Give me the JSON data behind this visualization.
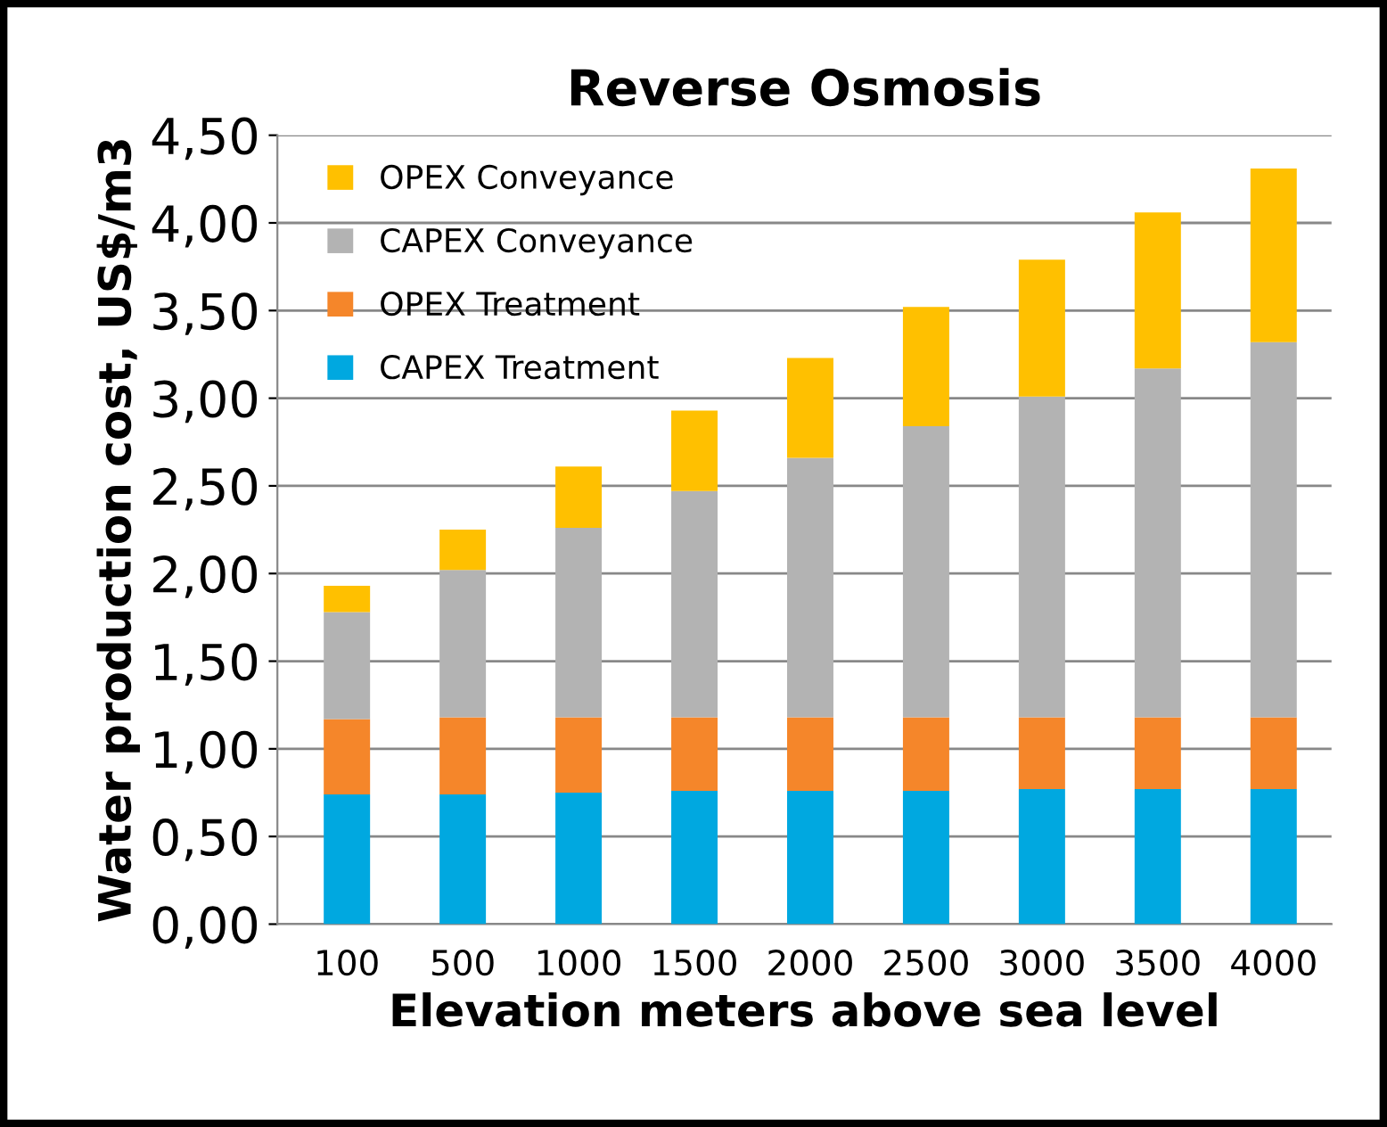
{
  "chart_data": {
    "type": "bar",
    "stacked": true,
    "title": "Reverse Osmosis",
    "xlabel": "Elevation meters above sea level",
    "ylabel": "Water production cost, US$/m3",
    "categories": [
      "100",
      "500",
      "1000",
      "1500",
      "2000",
      "2500",
      "3000",
      "3500",
      "4000"
    ],
    "series": [
      {
        "name": "CAPEX Treatment",
        "color": "#00a8e0",
        "values": [
          0.74,
          0.74,
          0.75,
          0.76,
          0.76,
          0.76,
          0.77,
          0.77,
          0.77
        ]
      },
      {
        "name": "OPEX Treatment",
        "color": "#f5862a",
        "values": [
          0.43,
          0.44,
          0.43,
          0.42,
          0.42,
          0.42,
          0.41,
          0.41,
          0.41
        ]
      },
      {
        "name": "CAPEX Conveyance",
        "color": "#b3b3b3",
        "values": [
          0.61,
          0.84,
          1.08,
          1.29,
          1.48,
          1.66,
          1.83,
          1.99,
          2.14
        ]
      },
      {
        "name": "OPEX Conveyance",
        "color": "#ffc000",
        "values": [
          0.15,
          0.23,
          0.35,
          0.46,
          0.57,
          0.68,
          0.78,
          0.89,
          0.99
        ]
      }
    ],
    "ylim": [
      0,
      4.5
    ],
    "yticks": [
      {
        "value": 0,
        "label": "0,00"
      },
      {
        "value": 0.5,
        "label": "0,50"
      },
      {
        "value": 1,
        "label": "1,00"
      },
      {
        "value": 1.5,
        "label": "1,50"
      },
      {
        "value": 2,
        "label": "2,00"
      },
      {
        "value": 2.5,
        "label": "2,50"
      },
      {
        "value": 3,
        "label": "3,00"
      },
      {
        "value": 3.5,
        "label": "3,50"
      },
      {
        "value": 4,
        "label": "4,00"
      },
      {
        "value": 4.5,
        "label": "4,50"
      }
    ],
    "grid": "y",
    "legend": "top left"
  }
}
